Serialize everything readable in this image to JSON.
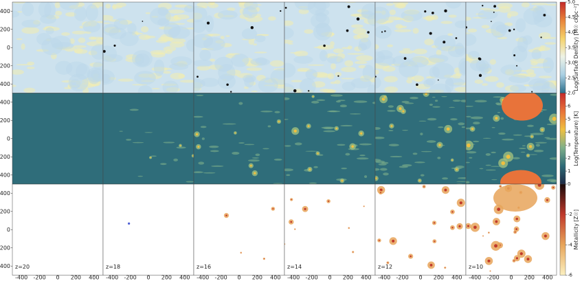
{
  "chart_data": {
    "type": "image-grid",
    "panels": [
      "z=20",
      "z=18",
      "z=16",
      "z=14",
      "z=12",
      "z=10"
    ],
    "xlim": [
      -500,
      500
    ],
    "xticks": [
      -400,
      -200,
      0,
      200,
      400
    ],
    "ylim": [
      -500,
      500
    ],
    "yticks": [
      400,
      200,
      0,
      -200,
      -400
    ],
    "rows": [
      {
        "label": "Log(Surface Density) [M☉ ckpc⁻²]",
        "cbar_lim": [
          2.0,
          5.0
        ],
        "cbar_ticks": [
          {
            "value": 2,
            "label": "2.0"
          },
          {
            "value": 2.5,
            "label": "2.5"
          },
          {
            "value": 3,
            "label": "3.0"
          },
          {
            "value": 3.5,
            "label": "3.5"
          },
          {
            "value": 4,
            "label": "4.0"
          },
          {
            "value": 4.5,
            "label": "4.5"
          },
          {
            "value": 5,
            "label": "5.0"
          }
        ],
        "colors": [
          "#2b6e8a",
          "#a9cfe3",
          "#eef3e6",
          "#f5d26a",
          "#e8833a",
          "#c42a2a"
        ]
      },
      {
        "label": "Log(Temperature) [K]",
        "cbar_lim": [
          0,
          7
        ],
        "cbar_ticks": [
          1,
          2,
          3,
          4,
          5,
          6
        ],
        "colors": [
          "#1f2a44",
          "#2e6b78",
          "#7fb08a",
          "#f0c040",
          "#e8733a",
          "#c42a2a"
        ]
      },
      {
        "label": "Metallicity [Z☉]",
        "cbar_lim": [
          -6,
          0
        ],
        "cbar_ticks": [
          -6,
          -4,
          -2,
          0
        ],
        "colors": [
          "#fbf0c0",
          "#e8a55a",
          "#c0392b",
          "#1a0a0a"
        ]
      }
    ]
  }
}
